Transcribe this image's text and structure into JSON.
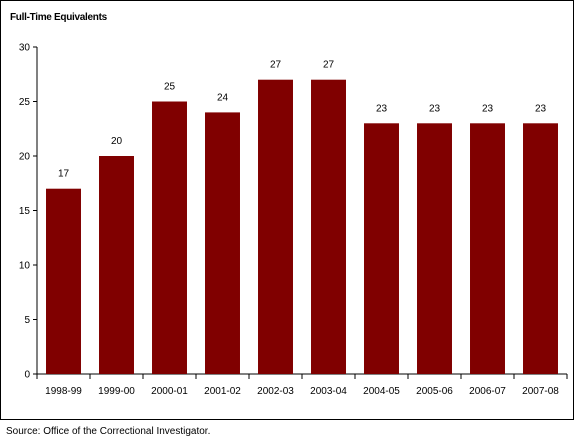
{
  "chart_data": {
    "type": "bar",
    "ylabel": "Full-Time Equivalents",
    "categories": [
      "1998-99",
      "1999-00",
      "2000-01",
      "2001-02",
      "2002-03",
      "2003-04",
      "2004-05",
      "2005-06",
      "2006-07",
      "2007-08"
    ],
    "values": [
      17,
      20,
      25,
      24,
      27,
      27,
      23,
      23,
      23,
      23
    ],
    "ylim": [
      0,
      30
    ],
    "yticks": [
      "0",
      "5",
      "10",
      "15",
      "20",
      "25",
      "30"
    ],
    "bar_color": "#800000",
    "grid": false,
    "data_labels": true
  },
  "source_note": "Source:  Office of the Correctional Investigator."
}
